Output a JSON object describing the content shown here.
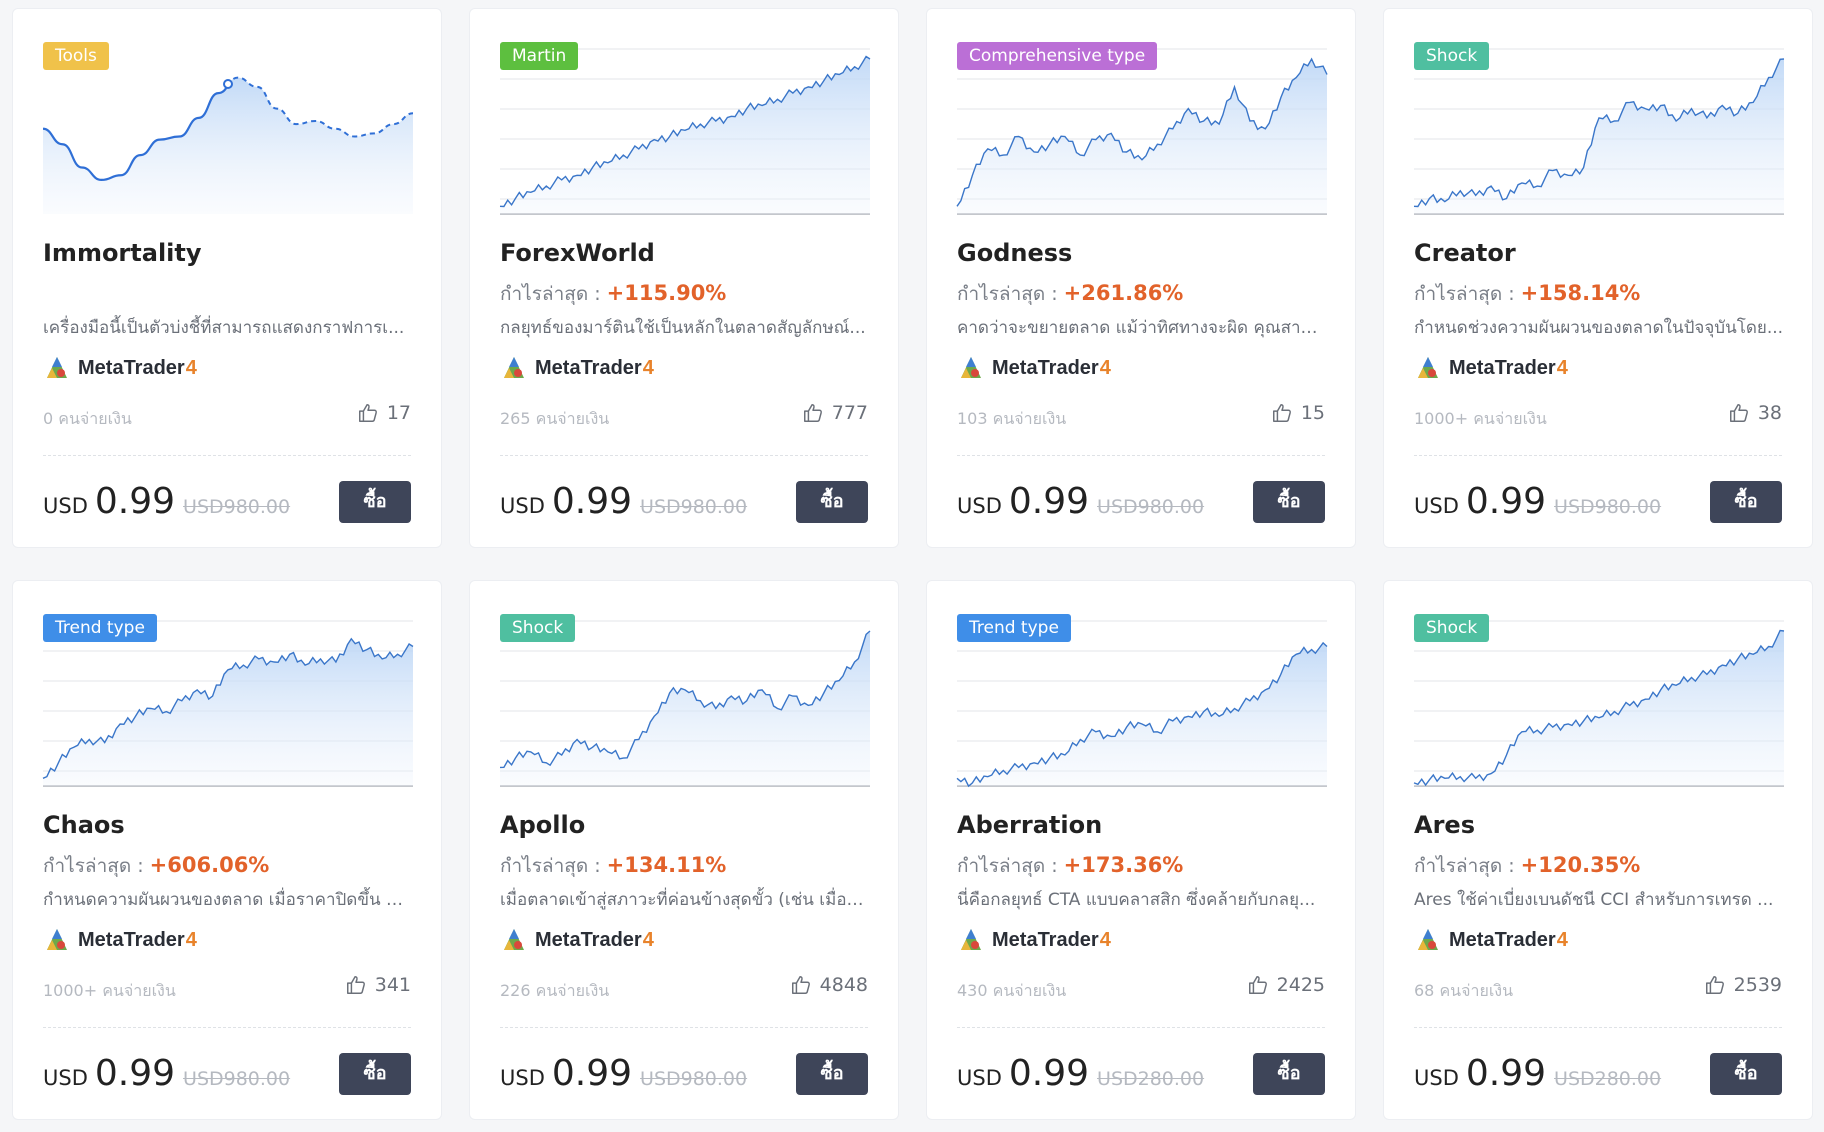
{
  "labels": {
    "profit_prefix": "กำไรล่าสุด : ",
    "platform_name": "MetaTrader",
    "platform_version": "4",
    "buy": "ซื้อ",
    "currency": "USD"
  },
  "colors": {
    "tools": "#f0c24a",
    "martin": "#5dbf3f",
    "comprehensive": "#bb6fd6",
    "shock": "#4fbfa0",
    "trend": "#3f8ee8",
    "profit": "#e2622a",
    "buy_button": "#3e4559"
  },
  "products": [
    {
      "tag": "Tools",
      "tag_color": "#f0c24a",
      "name": "Immortality",
      "profit": "",
      "desc": "เครื่องมือนี้เป็นตัวบ่งชี้ที่สามารถแสดงกราฟการเ...",
      "buyers": "0 คนจ่ายเงิน",
      "likes": "17",
      "price": "0.99",
      "old_price": "USD980.00",
      "chart_kind": "curve",
      "chart_data": {
        "type": "line",
        "series": [
          {
            "values": [
              0.55,
              0.45,
              0.3,
              0.22,
              0.25,
              0.38,
              0.48,
              0.5,
              0.62,
              0.78,
              0.88,
              0.82,
              0.68,
              0.58,
              0.6,
              0.55,
              0.5,
              0.52,
              0.58,
              0.65
            ]
          }
        ]
      }
    },
    {
      "tag": "Martin",
      "tag_color": "#5dbf3f",
      "name": "ForexWorld",
      "profit": "+115.90%",
      "desc": "กลยุทธ์ของมาร์ตินใช้เป็นหลักในตลาดสัญลักษณ์...",
      "buyers": "265 คนจ่ายเงิน",
      "likes": "777",
      "price": "0.99",
      "old_price": "USD980.00",
      "chart_kind": "area",
      "chart_data": {
        "type": "area",
        "series": [
          {
            "values": [
              0.05,
              0.1,
              0.14,
              0.18,
              0.22,
              0.25,
              0.3,
              0.33,
              0.38,
              0.42,
              0.48,
              0.5,
              0.54,
              0.58,
              0.6,
              0.63,
              0.68,
              0.7,
              0.74,
              0.78,
              0.82,
              0.86,
              0.9,
              0.95,
              1.0
            ]
          }
        ]
      }
    },
    {
      "tag": "Comprehensive type",
      "tag_color": "#bb6fd6",
      "name": "Godness",
      "profit": "+261.86%",
      "desc": "คาดว่าจะขยายตลาด แม้ว่าทิศทางจะผิด คุณสาม...",
      "buyers": "103 คนจ่ายเงิน",
      "likes": "15",
      "price": "0.99",
      "old_price": "USD980.00",
      "chart_kind": "area",
      "chart_data": {
        "type": "area",
        "series": [
          {
            "values": [
              0.05,
              0.25,
              0.42,
              0.38,
              0.5,
              0.4,
              0.45,
              0.5,
              0.38,
              0.48,
              0.52,
              0.4,
              0.35,
              0.45,
              0.55,
              0.68,
              0.6,
              0.58,
              0.82,
              0.6,
              0.55,
              0.75,
              0.88,
              1.0,
              0.9
            ]
          }
        ]
      }
    },
    {
      "tag": "Shock",
      "tag_color": "#4fbfa0",
      "name": "Creator",
      "profit": "+158.14%",
      "desc": "กำหนดช่วงความผันผวนของตลาดในปัจจุบันโดย...",
      "buyers": "1000+ คนจ่ายเงิน",
      "likes": "38",
      "price": "0.99",
      "old_price": "USD980.00",
      "chart_kind": "area",
      "chart_data": {
        "type": "area",
        "series": [
          {
            "values": [
              0.05,
              0.1,
              0.08,
              0.15,
              0.12,
              0.18,
              0.1,
              0.2,
              0.18,
              0.28,
              0.25,
              0.3,
              0.62,
              0.6,
              0.72,
              0.68,
              0.7,
              0.6,
              0.68,
              0.62,
              0.7,
              0.65,
              0.72,
              0.88,
              1.0
            ]
          }
        ]
      }
    },
    {
      "tag": "Trend type",
      "tag_color": "#3f8ee8",
      "name": "Chaos",
      "profit": "+606.06%",
      "desc": "กำหนดความผันผวนของตลาด เมื่อราคาปิดขึ้น ท...",
      "buyers": "1000+ คนจ่ายเงิน",
      "likes": "341",
      "price": "0.99",
      "old_price": "USD980.00",
      "chart_kind": "area",
      "chart_data": {
        "type": "area",
        "series": [
          {
            "values": [
              0.05,
              0.15,
              0.25,
              0.3,
              0.28,
              0.4,
              0.45,
              0.5,
              0.48,
              0.55,
              0.62,
              0.58,
              0.75,
              0.78,
              0.82,
              0.8,
              0.85,
              0.78,
              0.82,
              0.8,
              0.95,
              0.88,
              0.82,
              0.85,
              0.9
            ]
          }
        ]
      }
    },
    {
      "tag": "Shock",
      "tag_color": "#4fbfa0",
      "name": "Apollo",
      "profit": "+134.11%",
      "desc": "เมื่อตลาดเข้าสู่สภาวะที่ค่อนข้างสุดขั้ว (เช่น เมื่อต...",
      "buyers": "226 คนจ่ายเงิน",
      "likes": "4848",
      "price": "0.99",
      "old_price": "USD980.00",
      "chart_kind": "area",
      "chart_data": {
        "type": "area",
        "series": [
          {
            "values": [
              0.12,
              0.18,
              0.22,
              0.15,
              0.2,
              0.3,
              0.25,
              0.22,
              0.18,
              0.3,
              0.45,
              0.6,
              0.62,
              0.55,
              0.5,
              0.58,
              0.55,
              0.62,
              0.5,
              0.58,
              0.52,
              0.6,
              0.68,
              0.8,
              1.0
            ]
          }
        ]
      }
    },
    {
      "tag": "Trend type",
      "tag_color": "#3f8ee8",
      "name": "Aberration",
      "profit": "+173.36%",
      "desc": "นี่คือกลยุทธ์ CTA แบบคลาสสิก ซึ่งคล้ายกับกลยุ...",
      "buyers": "430 คนจ่ายเงิน",
      "likes": "2425",
      "price": "0.99",
      "old_price": "USD280.00",
      "chart_kind": "area",
      "chart_data": {
        "type": "area",
        "series": [
          {
            "values": [
              0.05,
              0.02,
              0.06,
              0.1,
              0.12,
              0.15,
              0.18,
              0.2,
              0.3,
              0.35,
              0.32,
              0.38,
              0.4,
              0.35,
              0.42,
              0.45,
              0.48,
              0.45,
              0.5,
              0.55,
              0.62,
              0.72,
              0.85,
              0.88,
              0.9
            ]
          }
        ]
      }
    },
    {
      "tag": "Shock",
      "tag_color": "#4fbfa0",
      "name": "Ares",
      "profit": "+120.35%",
      "desc": "Ares ใช้ค่าเบี่ยงเบนดัชนี CCI สำหรับการเทรด ...",
      "buyers": "68 คนจ่ายเงิน",
      "likes": "2539",
      "price": "0.99",
      "old_price": "USD280.00",
      "chart_kind": "area",
      "chart_data": {
        "type": "area",
        "series": [
          {
            "values": [
              0.02,
              0.04,
              0.05,
              0.06,
              0.05,
              0.08,
              0.2,
              0.35,
              0.36,
              0.38,
              0.4,
              0.42,
              0.44,
              0.48,
              0.52,
              0.56,
              0.62,
              0.65,
              0.7,
              0.72,
              0.78,
              0.82,
              0.85,
              0.9,
              1.0
            ]
          }
        ]
      }
    }
  ]
}
